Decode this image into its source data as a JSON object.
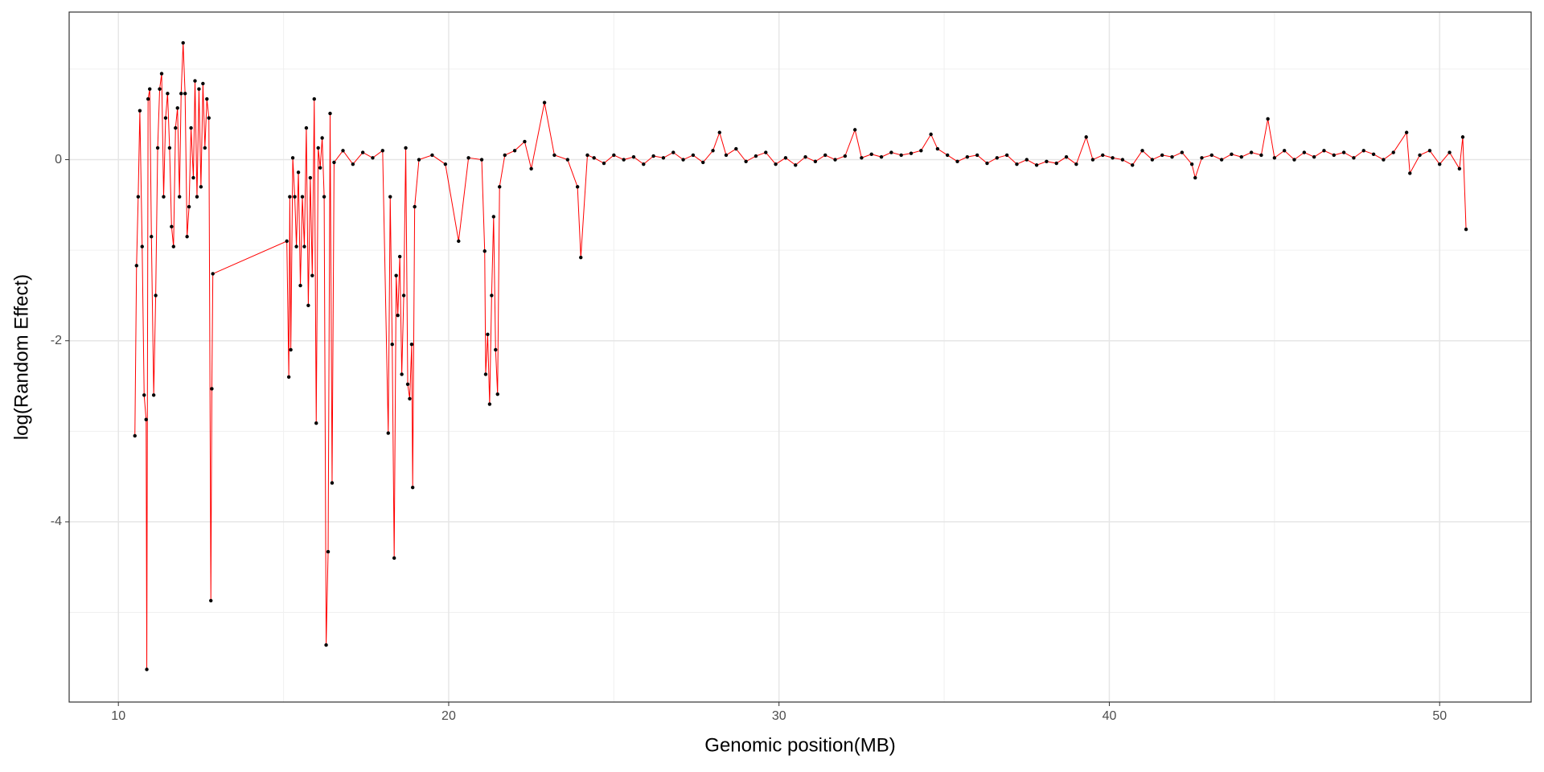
{
  "chart_data": {
    "type": "line",
    "markers": true,
    "x_label": "Genomic position(MB)",
    "y_label": "log(Random Effect)",
    "line_color": "#ff0000",
    "point_color": "#000000",
    "xlim": [
      8.51,
      52.77
    ],
    "ylim": [
      -5.99,
      1.63
    ],
    "xticks": [
      10,
      20,
      30,
      40,
      50
    ],
    "yticks": [
      -4,
      -2,
      0
    ],
    "xminorticks": [
      15,
      25,
      35,
      45
    ],
    "yminorticks": [
      -5,
      -3,
      -1,
      1
    ],
    "grid": true,
    "x": [
      10.5,
      10.55,
      10.6,
      10.65,
      10.72,
      10.78,
      10.84,
      10.86,
      10.9,
      10.95,
      11.0,
      11.07,
      11.13,
      11.19,
      11.25,
      11.31,
      11.37,
      11.43,
      11.49,
      11.55,
      11.61,
      11.67,
      11.73,
      11.79,
      11.85,
      11.9,
      11.96,
      12.02,
      12.08,
      12.14,
      12.2,
      12.27,
      12.32,
      12.38,
      12.44,
      12.5,
      12.56,
      12.62,
      12.68,
      12.74,
      12.8,
      12.83,
      12.86,
      15.1,
      15.16,
      15.19,
      15.22,
      15.28,
      15.34,
      15.39,
      15.45,
      15.51,
      15.57,
      15.63,
      15.69,
      15.75,
      15.81,
      15.87,
      15.93,
      15.99,
      16.05,
      16.11,
      16.17,
      16.23,
      16.29,
      16.35,
      16.41,
      16.47,
      16.53,
      16.8,
      17.1,
      17.4,
      17.7,
      18.0,
      18.17,
      18.23,
      18.29,
      18.35,
      18.41,
      18.46,
      18.52,
      18.58,
      18.64,
      18.7,
      18.76,
      18.82,
      18.88,
      18.91,
      18.97,
      19.1,
      19.5,
      19.9,
      20.3,
      20.6,
      21.0,
      21.09,
      21.12,
      21.18,
      21.24,
      21.3,
      21.36,
      21.42,
      21.48,
      21.54,
      21.7,
      22.0,
      22.3,
      22.5,
      22.9,
      23.2,
      23.6,
      23.9,
      24.0,
      24.2,
      24.4,
      24.7,
      25.0,
      25.3,
      25.6,
      25.9,
      26.2,
      26.5,
      26.8,
      27.1,
      27.4,
      27.7,
      28.0,
      28.2,
      28.4,
      28.7,
      29.0,
      29.3,
      29.6,
      29.9,
      30.2,
      30.5,
      30.8,
      31.1,
      31.4,
      31.7,
      32.0,
      32.3,
      32.5,
      32.8,
      33.1,
      33.4,
      33.7,
      34.0,
      34.3,
      34.6,
      34.8,
      35.1,
      35.4,
      35.7,
      36.0,
      36.3,
      36.6,
      36.9,
      37.2,
      37.5,
      37.8,
      38.1,
      38.4,
      38.7,
      39.0,
      39.3,
      39.5,
      39.8,
      40.1,
      40.4,
      40.7,
      41.0,
      41.3,
      41.6,
      41.9,
      42.2,
      42.5,
      42.6,
      42.8,
      43.1,
      43.4,
      43.7,
      44.0,
      44.3,
      44.6,
      44.8,
      45.0,
      45.3,
      45.6,
      45.9,
      46.2,
      46.5,
      46.8,
      47.1,
      47.4,
      47.7,
      48.0,
      48.3,
      48.6,
      49.0,
      49.1,
      49.4,
      49.7,
      50.0,
      50.3,
      50.6,
      50.7,
      50.8
    ],
    "values": [
      -3.05,
      -1.17,
      -0.41,
      0.54,
      -0.96,
      -2.6,
      -2.87,
      -5.63,
      0.67,
      0.78,
      -0.85,
      -2.6,
      -1.5,
      0.13,
      0.78,
      0.95,
      -0.41,
      0.46,
      0.73,
      0.13,
      -0.74,
      -0.96,
      0.35,
      0.57,
      -0.41,
      0.73,
      1.29,
      0.73,
      -0.85,
      -0.52,
      0.35,
      -0.2,
      0.87,
      -0.41,
      0.78,
      -0.3,
      0.84,
      0.13,
      0.67,
      0.46,
      -4.87,
      -2.53,
      -1.26,
      -0.9,
      -2.4,
      -0.41,
      -2.1,
      0.02,
      -0.41,
      -0.96,
      -0.14,
      -1.39,
      -0.41,
      -0.96,
      0.35,
      -1.61,
      -0.2,
      -1.28,
      0.67,
      -2.91,
      0.13,
      -0.09,
      0.24,
      -0.41,
      -5.36,
      -4.33,
      0.51,
      -3.57,
      -0.03,
      0.1,
      -0.05,
      0.08,
      0.02,
      0.1,
      -3.02,
      -0.41,
      -2.04,
      -4.4,
      -1.28,
      -1.72,
      -1.07,
      -2.37,
      -1.5,
      0.13,
      -2.48,
      -2.64,
      -2.04,
      -3.62,
      -0.52,
      0.0,
      0.05,
      -0.05,
      -0.9,
      0.02,
      0.0,
      -1.01,
      -2.37,
      -1.93,
      -2.7,
      -1.5,
      -0.63,
      -2.1,
      -2.59,
      -0.3,
      0.05,
      0.1,
      0.2,
      -0.1,
      0.63,
      0.05,
      0.0,
      -0.3,
      -1.08,
      0.05,
      0.02,
      -0.04,
      0.05,
      0.0,
      0.03,
      -0.05,
      0.04,
      0.02,
      0.08,
      0.0,
      0.05,
      -0.03,
      0.1,
      0.3,
      0.05,
      0.12,
      -0.02,
      0.04,
      0.08,
      -0.05,
      0.02,
      -0.06,
      0.03,
      -0.02,
      0.05,
      0.0,
      0.04,
      0.33,
      0.02,
      0.06,
      0.03,
      0.08,
      0.05,
      0.07,
      0.1,
      0.28,
      0.12,
      0.05,
      -0.02,
      0.03,
      0.05,
      -0.04,
      0.02,
      0.05,
      -0.05,
      0.0,
      -0.06,
      -0.02,
      -0.04,
      0.03,
      -0.05,
      0.25,
      0.0,
      0.05,
      0.02,
      0.0,
      -0.06,
      0.1,
      0.0,
      0.05,
      0.03,
      0.08,
      -0.05,
      -0.2,
      0.02,
      0.05,
      0.0,
      0.06,
      0.03,
      0.08,
      0.05,
      0.45,
      0.02,
      0.1,
      0.0,
      0.08,
      0.03,
      0.1,
      0.05,
      0.08,
      0.02,
      0.1,
      0.06,
      0.0,
      0.08,
      0.3,
      -0.15,
      0.05,
      0.1,
      -0.05,
      0.08,
      -0.1,
      0.25,
      -0.77
    ]
  }
}
